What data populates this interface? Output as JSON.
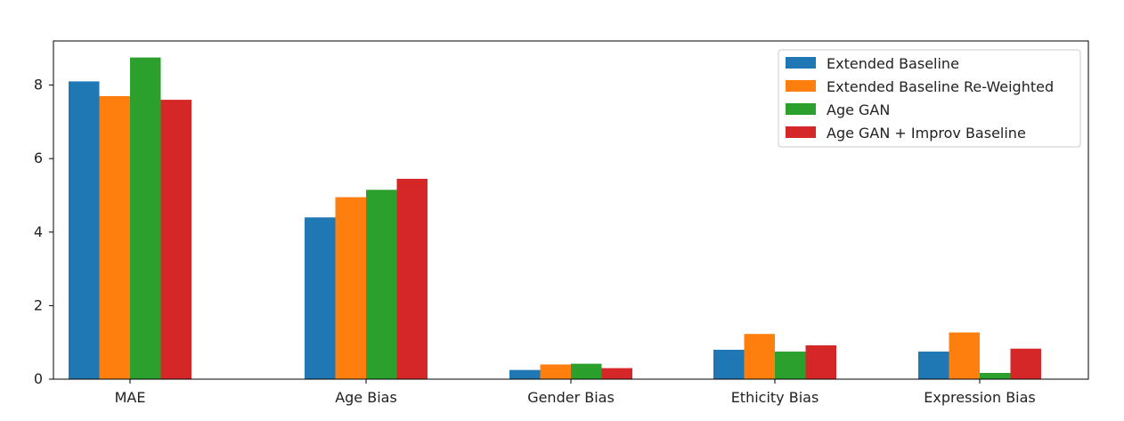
{
  "chart_data": {
    "type": "bar",
    "title": "",
    "xlabel": "",
    "ylabel": "",
    "categories": [
      "MAE",
      "Age Bias",
      "Gender Bias",
      "Ethicity Bias",
      "Expression Bias"
    ],
    "ylim": [
      0,
      9.2
    ],
    "yticks": [
      0,
      2,
      4,
      6,
      8
    ],
    "grid": false,
    "legend_position": "top-right",
    "series": [
      {
        "name": "Extended Baseline",
        "color": "#1f77b4",
        "values": [
          8.1,
          4.4,
          0.25,
          0.8,
          0.75
        ]
      },
      {
        "name": "Extended Baseline Re-Weighted",
        "color": "#ff7f0e",
        "values": [
          7.7,
          4.95,
          0.4,
          1.23,
          1.27
        ]
      },
      {
        "name": "Age GAN",
        "color": "#2ca02c",
        "values": [
          8.75,
          5.15,
          0.42,
          0.75,
          0.17
        ]
      },
      {
        "name": "Age GAN + Improv Baseline",
        "color": "#d62728",
        "values": [
          7.6,
          5.45,
          0.3,
          0.92,
          0.83
        ]
      }
    ]
  }
}
